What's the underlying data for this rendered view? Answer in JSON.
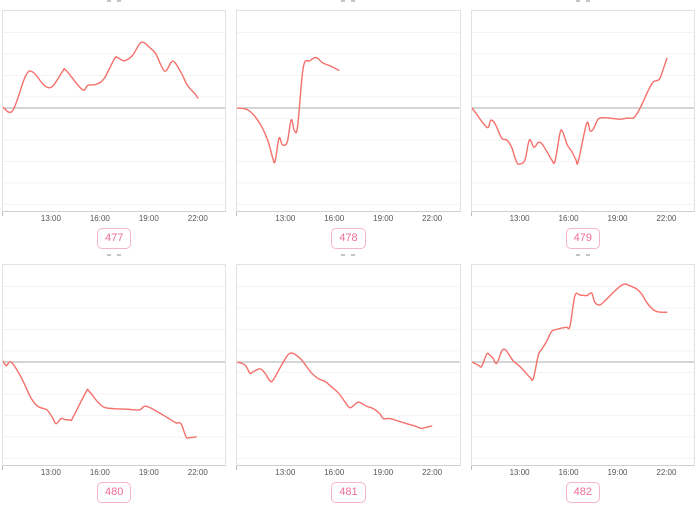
{
  "page": {
    "description": "Dashboard of six mini time-series line charts in a 2x3 grid; chart titles are clipped at the top edge of each tile",
    "background": "#ffffff"
  },
  "colors": {
    "line": "#f4706b",
    "grid": "#f3f3f3",
    "zero_line": "#ababab",
    "plot_border": "#e2e2e2",
    "axis_bottom_border": "#cfcfcf",
    "tick_text": "#555555",
    "badge_text": "#ee6e96",
    "badge_border": "#f6b6c9",
    "title_remnant": "#c4c4c4"
  },
  "axis": {
    "tick_labels": [
      "13:00",
      "16:00",
      "19:00",
      "22:00"
    ],
    "tick_hours": [
      13,
      16,
      19,
      22
    ],
    "domain_hours": [
      10,
      23.75
    ],
    "y_tick_labels_visible": false,
    "y_zero_line": true,
    "gridlines": "faint horizontal only",
    "y_unit_note": "y axis unlabeled; values estimated in gridline units relative to the darker zero line"
  },
  "chart_data": [
    {
      "type": "line",
      "badge": "477",
      "x_unit": "time of day (hours)",
      "points": [
        [
          10,
          0.03
        ],
        [
          10.6,
          -0.12
        ],
        [
          11.4,
          1.5
        ],
        [
          11.85,
          1.67
        ],
        [
          12.55,
          1.06
        ],
        [
          13.05,
          1.0
        ],
        [
          13.7,
          1.72
        ],
        [
          13.9,
          1.75
        ],
        [
          14.9,
          0.86
        ],
        [
          15.25,
          1.06
        ],
        [
          15.75,
          1.1
        ],
        [
          16.25,
          1.37
        ],
        [
          16.9,
          2.3
        ],
        [
          17.1,
          2.34
        ],
        [
          17.5,
          2.2
        ],
        [
          18.0,
          2.44
        ],
        [
          18.55,
          3.06
        ],
        [
          19.05,
          2.83
        ],
        [
          19.45,
          2.52
        ],
        [
          20.0,
          1.72
        ],
        [
          20.5,
          2.18
        ],
        [
          21.0,
          1.67
        ],
        [
          21.4,
          1.06
        ],
        [
          21.85,
          0.68
        ],
        [
          22.05,
          0.47
        ]
      ]
    },
    {
      "type": "line",
      "badge": "478",
      "x_unit": "time of day (hours)",
      "points": [
        [
          10,
          0.0
        ],
        [
          10.7,
          -0.1
        ],
        [
          11.4,
          -0.7
        ],
        [
          11.9,
          -1.5
        ],
        [
          12.2,
          -2.3
        ],
        [
          12.35,
          -2.5
        ],
        [
          12.6,
          -1.4
        ],
        [
          12.8,
          -1.7
        ],
        [
          13.1,
          -1.6
        ],
        [
          13.35,
          -0.55
        ],
        [
          13.55,
          -1.05
        ],
        [
          13.75,
          -0.85
        ],
        [
          14.1,
          1.9
        ],
        [
          14.5,
          2.2
        ],
        [
          14.9,
          2.35
        ],
        [
          15.3,
          2.1
        ],
        [
          15.8,
          1.95
        ],
        [
          16.3,
          1.75
        ]
      ]
    },
    {
      "type": "line",
      "badge": "479",
      "x_unit": "time of day (hours)",
      "points": [
        [
          10,
          0
        ],
        [
          10.3,
          -0.3
        ],
        [
          10.7,
          -0.72
        ],
        [
          11.0,
          -0.91
        ],
        [
          11.16,
          -0.57
        ],
        [
          11.42,
          -0.72
        ],
        [
          11.84,
          -1.4
        ],
        [
          12.15,
          -1.49
        ],
        [
          12.45,
          -1.83
        ],
        [
          12.76,
          -2.52
        ],
        [
          13.0,
          -2.6
        ],
        [
          13.28,
          -2.41
        ],
        [
          13.55,
          -1.49
        ],
        [
          13.83,
          -1.83
        ],
        [
          14.1,
          -1.6
        ],
        [
          14.31,
          -1.65
        ],
        [
          14.62,
          -2.01
        ],
        [
          14.93,
          -2.41
        ],
        [
          15.13,
          -2.49
        ],
        [
          15.44,
          -1.18
        ],
        [
          15.6,
          -1.09
        ],
        [
          15.89,
          -1.71
        ],
        [
          16.16,
          -2.01
        ],
        [
          16.43,
          -2.41
        ],
        [
          16.57,
          -2.49
        ],
        [
          17.09,
          -0.72
        ],
        [
          17.3,
          -1.06
        ],
        [
          17.5,
          -0.98
        ],
        [
          17.8,
          -0.52
        ],
        [
          18.12,
          -0.45
        ],
        [
          18.53,
          -0.47
        ],
        [
          19.15,
          -0.52
        ],
        [
          19.6,
          -0.47
        ],
        [
          20.0,
          -0.45
        ],
        [
          20.3,
          -0.14
        ],
        [
          20.6,
          0.32
        ],
        [
          20.9,
          0.82
        ],
        [
          21.2,
          1.21
        ],
        [
          21.45,
          1.28
        ],
        [
          21.65,
          1.43
        ],
        [
          22.05,
          2.32
        ]
      ]
    },
    {
      "type": "line",
      "badge": "480",
      "x_unit": "time of day (hours)",
      "points": [
        [
          10,
          0.05
        ],
        [
          10.2,
          -0.17
        ],
        [
          10.5,
          0.0
        ],
        [
          11.1,
          -0.68
        ],
        [
          11.73,
          -1.67
        ],
        [
          12.15,
          -2.06
        ],
        [
          12.55,
          -2.17
        ],
        [
          12.76,
          -2.26
        ],
        [
          13.07,
          -2.6
        ],
        [
          13.28,
          -2.87
        ],
        [
          13.59,
          -2.63
        ],
        [
          13.79,
          -2.67
        ],
        [
          14.2,
          -2.7
        ],
        [
          14.31,
          -2.6
        ],
        [
          15.13,
          -1.4
        ],
        [
          15.3,
          -1.34
        ],
        [
          15.86,
          -1.86
        ],
        [
          16.27,
          -2.11
        ],
        [
          16.88,
          -2.17
        ],
        [
          17.71,
          -2.2
        ],
        [
          18.43,
          -2.23
        ],
        [
          18.74,
          -2.06
        ],
        [
          19.05,
          -2.11
        ],
        [
          19.57,
          -2.32
        ],
        [
          20.19,
          -2.6
        ],
        [
          20.7,
          -2.83
        ],
        [
          21.01,
          -2.87
        ],
        [
          21.32,
          -3.49
        ],
        [
          21.52,
          -3.52
        ],
        [
          21.94,
          -3.49
        ]
      ]
    },
    {
      "type": "line",
      "badge": "481",
      "x_unit": "time of day (hours)",
      "points": [
        [
          10,
          0
        ],
        [
          10.5,
          -0.14
        ],
        [
          10.8,
          -0.52
        ],
        [
          11.0,
          -0.45
        ],
        [
          11.42,
          -0.32
        ],
        [
          11.73,
          -0.52
        ],
        [
          12.04,
          -0.88
        ],
        [
          12.24,
          -0.83
        ],
        [
          12.76,
          -0.14
        ],
        [
          13.17,
          0.35
        ],
        [
          13.48,
          0.4
        ],
        [
          13.9,
          0.17
        ],
        [
          14.1,
          0.0
        ],
        [
          14.62,
          -0.52
        ],
        [
          15.03,
          -0.77
        ],
        [
          15.44,
          -0.9
        ],
        [
          15.75,
          -1.09
        ],
        [
          16.27,
          -1.44
        ],
        [
          16.68,
          -1.86
        ],
        [
          17.0,
          -2.13
        ],
        [
          17.4,
          -1.9
        ],
        [
          17.6,
          -1.88
        ],
        [
          18.02,
          -2.06
        ],
        [
          18.43,
          -2.17
        ],
        [
          18.84,
          -2.41
        ],
        [
          19.05,
          -2.63
        ],
        [
          19.46,
          -2.63
        ],
        [
          19.98,
          -2.75
        ],
        [
          20.49,
          -2.87
        ],
        [
          21.01,
          -2.98
        ],
        [
          21.42,
          -3.09
        ],
        [
          21.73,
          -3.03
        ],
        [
          22.04,
          -2.98
        ]
      ]
    },
    {
      "type": "line",
      "badge": "482",
      "x_unit": "time of day (hours)",
      "points": [
        [
          10,
          0
        ],
        [
          10.4,
          -0.15
        ],
        [
          10.6,
          -0.2
        ],
        [
          10.91,
          0.37
        ],
        [
          11.11,
          0.32
        ],
        [
          11.3,
          0.17
        ],
        [
          11.53,
          -0.06
        ],
        [
          11.84,
          0.51
        ],
        [
          12.04,
          0.59
        ],
        [
          12.24,
          0.4
        ],
        [
          12.55,
          0.05
        ],
        [
          12.86,
          -0.14
        ],
        [
          13.17,
          -0.37
        ],
        [
          13.59,
          -0.72
        ],
        [
          13.79,
          -0.78
        ],
        [
          14.1,
          0.32
        ],
        [
          14.31,
          0.59
        ],
        [
          14.62,
          0.97
        ],
        [
          14.93,
          1.43
        ],
        [
          15.24,
          1.52
        ],
        [
          15.54,
          1.58
        ],
        [
          15.85,
          1.62
        ],
        [
          16.06,
          1.67
        ],
        [
          16.37,
          3.09
        ],
        [
          16.68,
          3.12
        ],
        [
          17.09,
          3.09
        ],
        [
          17.4,
          3.21
        ],
        [
          17.6,
          2.78
        ],
        [
          17.91,
          2.66
        ],
        [
          18.33,
          2.93
        ],
        [
          18.74,
          3.24
        ],
        [
          19.15,
          3.52
        ],
        [
          19.46,
          3.63
        ],
        [
          19.77,
          3.55
        ],
        [
          20.18,
          3.4
        ],
        [
          20.49,
          3.17
        ],
        [
          20.8,
          2.78
        ],
        [
          21.11,
          2.5
        ],
        [
          21.42,
          2.35
        ],
        [
          21.73,
          2.32
        ],
        [
          22.04,
          2.32
        ]
      ]
    }
  ]
}
